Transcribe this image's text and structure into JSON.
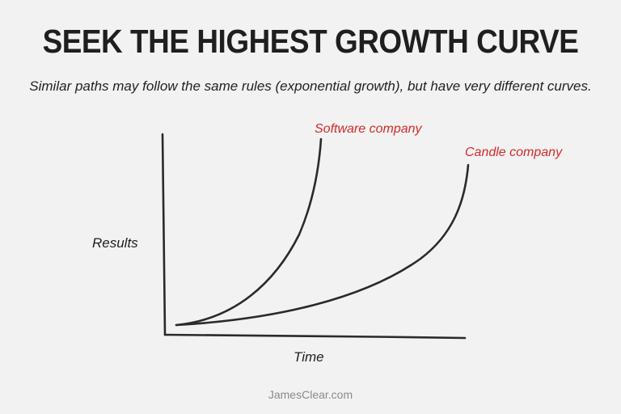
{
  "title": "SEEK THE HIGHEST GROWTH CURVE",
  "subtitle": "Similar paths may follow the same rules (exponential growth), but have very different curves.",
  "axes": {
    "y_label": "Results",
    "x_label": "Time"
  },
  "curves": [
    {
      "name": "Software company",
      "color": "#d42a2a"
    },
    {
      "name": "Candle company",
      "color": "#d42a2a"
    }
  ],
  "colors": {
    "ink": "#2a2a2a",
    "accent": "#d42a2a",
    "footer": "#8a8a8a"
  },
  "footer": "JamesClear.com"
}
